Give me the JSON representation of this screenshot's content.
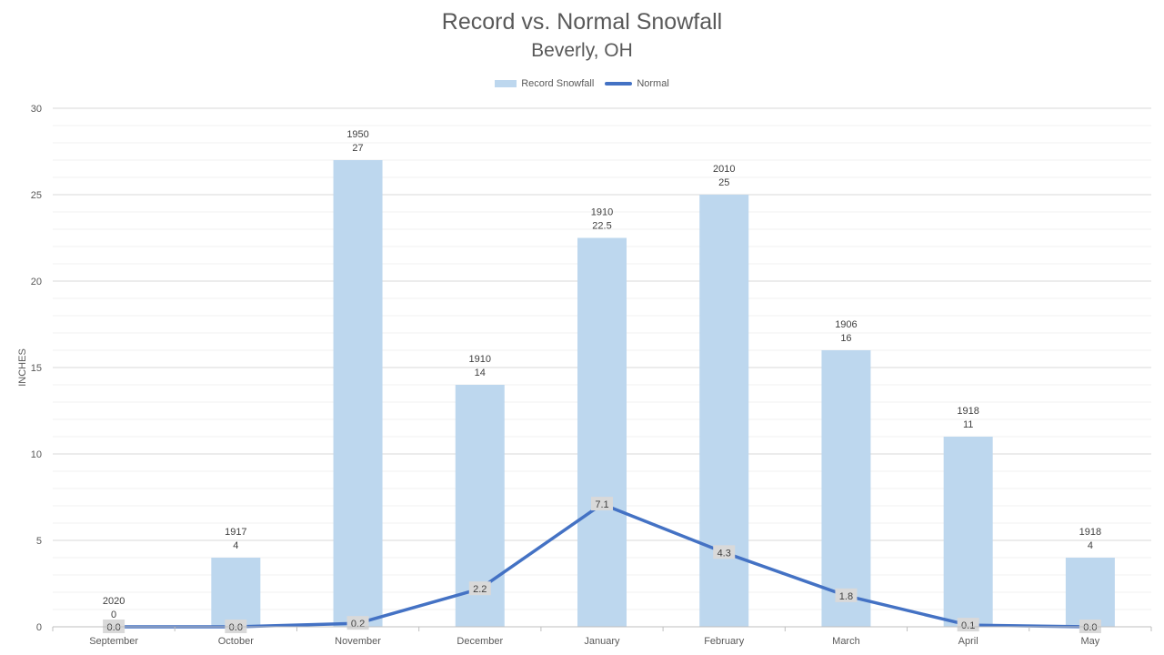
{
  "chart_data": {
    "type": "bar",
    "title": "Record vs. Normal Snowfall",
    "subtitle": "Beverly, OH",
    "ylabel": "INCHES",
    "xlabel": "",
    "ylim": [
      0,
      30
    ],
    "yticks": [
      0,
      5,
      10,
      15,
      20,
      25,
      30
    ],
    "grid": true,
    "legend_position": "top",
    "categories": [
      "September",
      "October",
      "November",
      "December",
      "January",
      "February",
      "March",
      "April",
      "May"
    ],
    "series": [
      {
        "name": "Record Snowfall",
        "kind": "bar",
        "color": "#bdd7ee",
        "values": [
          0,
          4,
          27,
          14,
          22.5,
          25,
          16,
          11,
          4
        ],
        "years": [
          "2020",
          "1917",
          "1950",
          "1910",
          "1910",
          "2010",
          "1906",
          "1918",
          "1918"
        ],
        "value_labels": [
          "0",
          "4",
          "27",
          "14",
          "22.5",
          "25",
          "16",
          "11",
          "4"
        ]
      },
      {
        "name": "Normal",
        "kind": "line",
        "color": "#4472c4",
        "values": [
          0.0,
          0.0,
          0.2,
          2.2,
          7.1,
          4.3,
          1.8,
          0.1,
          0.0
        ],
        "value_labels": [
          "0.0",
          "0.0",
          "0.2",
          "2.2",
          "7.1",
          "4.3",
          "1.8",
          "0.1",
          "0.0"
        ]
      }
    ]
  }
}
